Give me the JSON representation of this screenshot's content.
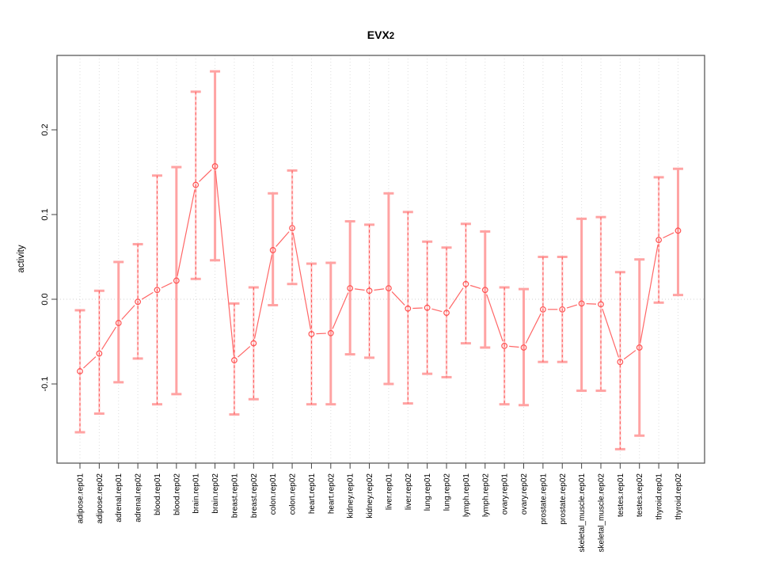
{
  "title": {
    "text": "EVX2",
    "main": "EVX",
    "suffix": "2"
  },
  "colors": {
    "band": "#ffa3a3",
    "line": "#ff5252",
    "connector": "#ff6666",
    "grid": "#dedede",
    "zero_line": "#d2d2d2",
    "frame": "#5a5a5a",
    "tick": "#444444",
    "text": "#000000"
  },
  "chart_data": {
    "type": "line",
    "subtype": "points-with-error-bars",
    "title": "EVX2",
    "xlabel": "",
    "ylabel": "activity",
    "ylim": [
      -0.193,
      0.288
    ],
    "yticks": [
      -0.1,
      0.0,
      0.1,
      0.2
    ],
    "ytick_labels": [
      "-0.1",
      "0.0",
      "0.1",
      "0.2"
    ],
    "grid": "vertical dotted gridlines at every category; dotted horizontal line at y=0",
    "legend_position": "none",
    "marker": "open-circle",
    "categories": [
      "adipose.rep01",
      "adipose.rep02",
      "adrenal.rep01",
      "adrenal.rep02",
      "blood.rep01",
      "blood.rep02",
      "brain.rep01",
      "brain.rep02",
      "breast.rep01",
      "breast.rep02",
      "colon.rep01",
      "colon.rep02",
      "heart.rep01",
      "heart.rep02",
      "kidney.rep01",
      "kidney.rep02",
      "liver.rep01",
      "liver.rep02",
      "lung.rep01",
      "lung.rep02",
      "lymph.rep01",
      "lymph.rep02",
      "ovary.rep01",
      "ovary.rep02",
      "prostate.rep01",
      "prostate.rep02",
      "skeletal_muscle.rep01",
      "skeletal_muscle.rep02",
      "testes.rep01",
      "testes.rep02",
      "thyroid.rep01",
      "thyroid.rep02"
    ],
    "series": [
      {
        "name": "activity",
        "values": [
          -0.085,
          -0.064,
          -0.028,
          -0.003,
          0.011,
          0.022,
          0.135,
          0.157,
          -0.072,
          -0.052,
          0.058,
          0.084,
          -0.041,
          -0.04,
          0.013,
          0.01,
          0.013,
          -0.011,
          -0.01,
          -0.016,
          0.018,
          0.011,
          -0.055,
          -0.057,
          -0.012,
          -0.012,
          -0.005,
          -0.006,
          -0.074,
          -0.057,
          0.07,
          0.081
        ],
        "lower": [
          -0.157,
          -0.135,
          -0.098,
          -0.07,
          -0.124,
          -0.112,
          0.024,
          0.046,
          -0.136,
          -0.118,
          -0.007,
          0.018,
          -0.124,
          -0.124,
          -0.065,
          -0.069,
          -0.1,
          -0.123,
          -0.088,
          -0.092,
          -0.052,
          -0.057,
          -0.124,
          -0.125,
          -0.074,
          -0.074,
          -0.108,
          -0.108,
          -0.177,
          -0.161,
          -0.004,
          0.005
        ],
        "upper": [
          -0.013,
          0.01,
          0.044,
          0.065,
          0.146,
          0.156,
          0.245,
          0.269,
          -0.005,
          0.014,
          0.125,
          0.152,
          0.042,
          0.043,
          0.092,
          0.088,
          0.125,
          0.103,
          0.068,
          0.061,
          0.089,
          0.08,
          0.014,
          0.012,
          0.05,
          0.05,
          0.095,
          0.097,
          0.032,
          0.047,
          0.144,
          0.154
        ],
        "bar_styles": [
          "dashed",
          "dashed",
          "solid",
          "dashed",
          "dashed",
          "solid",
          "dashed",
          "solid",
          "dashed",
          "dashed",
          "solid",
          "dashed",
          "dashed",
          "solid",
          "solid",
          "dashed",
          "solid",
          "dashed",
          "dashed",
          "dashed",
          "dashed",
          "solid",
          "dashed",
          "solid",
          "dashed",
          "dashed",
          "solid",
          "dashed",
          "dashed",
          "solid",
          "dashed",
          "solid"
        ]
      }
    ]
  }
}
